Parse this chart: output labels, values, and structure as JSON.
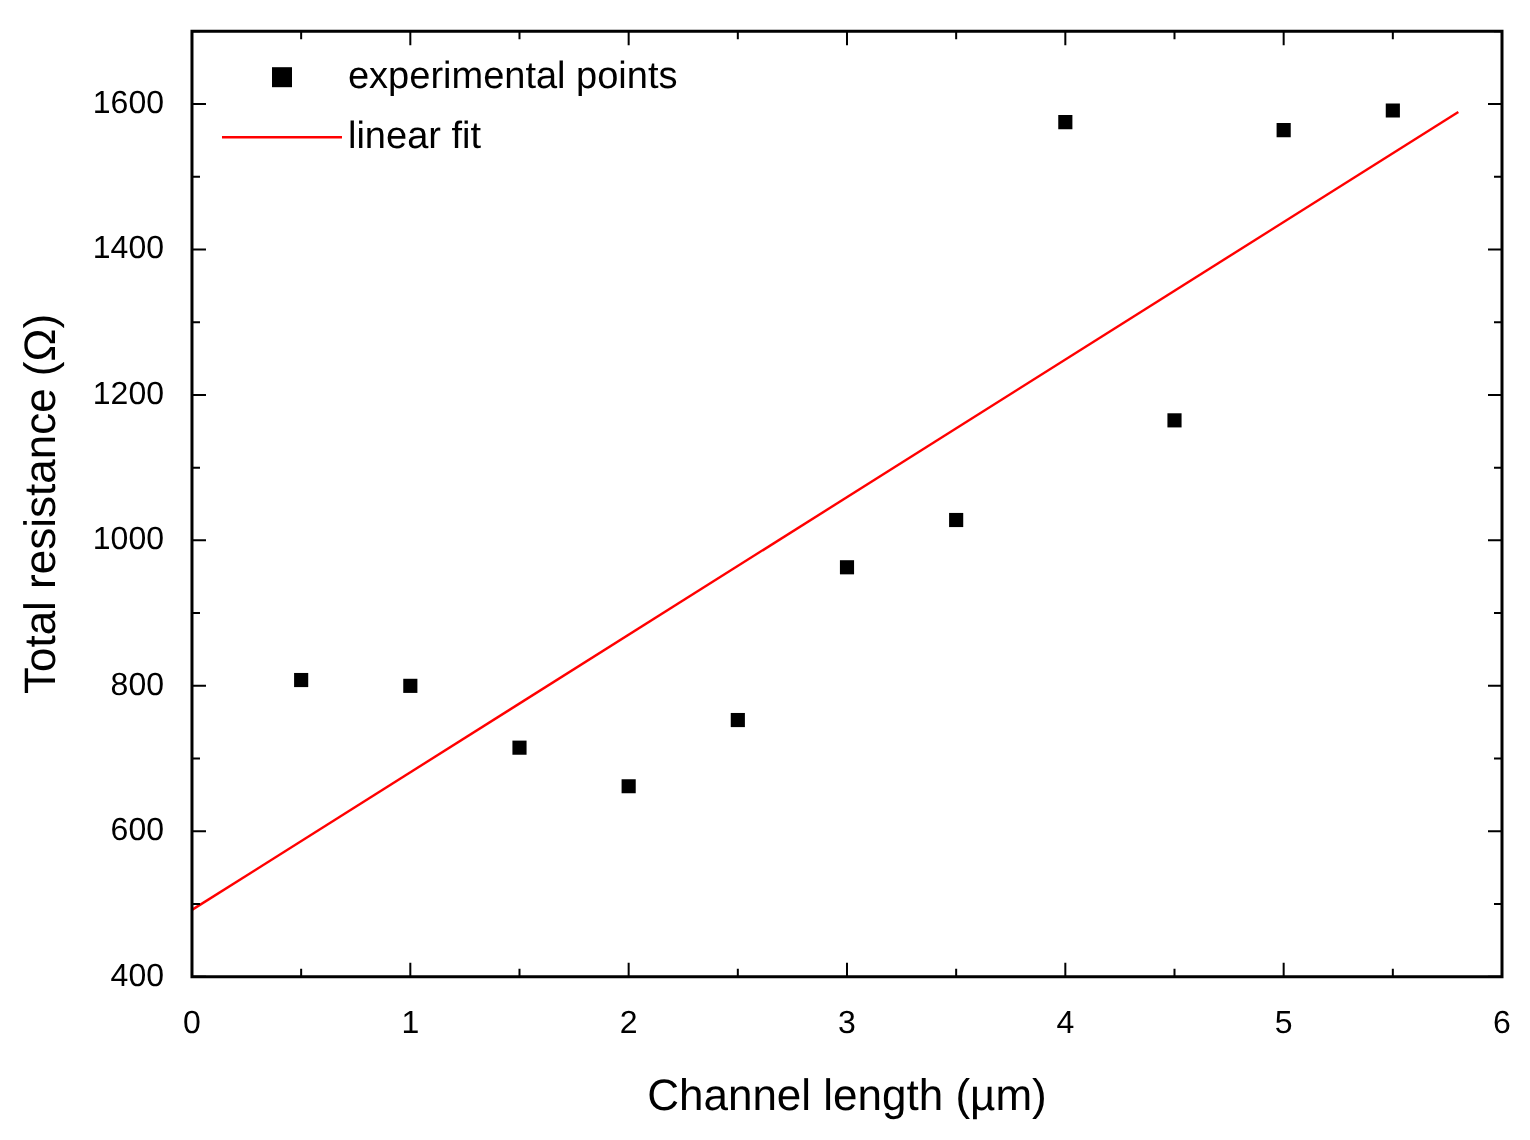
{
  "chart_data": {
    "type": "scatter",
    "xlabel": "Channel length (µm)",
    "ylabel": "Total resistance (Ω)",
    "xlim": [
      0,
      6
    ],
    "ylim": [
      400,
      1700
    ],
    "xticks": [
      0,
      1,
      2,
      3,
      4,
      5,
      6
    ],
    "yticks": [
      400,
      600,
      800,
      1000,
      1200,
      1400,
      1600
    ],
    "legend": "top left",
    "series": [
      {
        "name": "experimental points",
        "marker": "square",
        "color": "#000000",
        "x": [
          0.5,
          1,
          1.5,
          2,
          2.5,
          3,
          3.5,
          4,
          4.5,
          5,
          5.5
        ],
        "values": [
          808,
          800,
          715,
          662,
          753,
          963,
          1028,
          1575,
          1165,
          1564,
          1591
        ]
      },
      {
        "name": "linear fit",
        "type": "line",
        "marker": "none",
        "color": "#ff0000",
        "x": [
          0,
          5.8
        ],
        "values": [
          492,
          1589
        ]
      }
    ]
  }
}
